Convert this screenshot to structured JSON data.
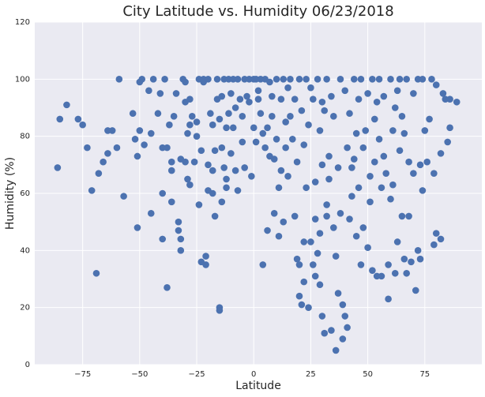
{
  "chart_data": {
    "type": "scatter",
    "title": "City Latitude vs. Humidity 06/23/2018",
    "x_label": "Latitude",
    "y_label": "Humidity (%)",
    "color": "#4c72b0",
    "grid": true,
    "xlim": [
      -96,
      100
    ],
    "ylim": [
      0,
      120
    ],
    "xticks": [
      {
        "value": -75,
        "label": "−75"
      },
      {
        "value": -50,
        "label": "−50"
      },
      {
        "value": -25,
        "label": "−25"
      },
      0,
      25,
      50,
      75
    ],
    "yticks": [
      0,
      20,
      40,
      60,
      80,
      100,
      120
    ],
    "x": [
      -86,
      -85,
      -82,
      -77,
      -75,
      -73,
      -71,
      -69,
      -68,
      -66,
      -64,
      -64,
      -62,
      -60,
      -59,
      -57,
      -53,
      -52,
      -51,
      -51,
      -50,
      -50,
      -49,
      -48,
      -46,
      -45,
      -45,
      -44,
      -42,
      -41,
      -40,
      -40,
      -40,
      -39,
      -38,
      -38,
      -37,
      -36,
      -36,
      -36,
      -35,
      -34,
      -33,
      -33,
      -32,
      -32,
      -32,
      -31,
      -30,
      -30,
      -30,
      -29,
      -29,
      -28,
      -28,
      -28,
      -27,
      -26,
      -25,
      -25,
      -24,
      -24,
      -23,
      -23,
      -22,
      -22,
      -21,
      -21,
      -20,
      -20,
      -20,
      -19,
      -18,
      -18,
      -18,
      -17,
      -17,
      -16,
      -16,
      -15,
      -15,
      -15,
      -14,
      -14,
      -14,
      -13,
      -13,
      -12,
      -12,
      -12,
      -11,
      -11,
      -10,
      -10,
      -9,
      -9,
      -8,
      -8,
      -7,
      -7,
      -6,
      -5,
      -5,
      -4,
      -4,
      -3,
      -2,
      -2,
      -1,
      0,
      0,
      1,
      1,
      2,
      2,
      3,
      3,
      4,
      4,
      5,
      5,
      6,
      6,
      7,
      7,
      8,
      8,
      9,
      9,
      10,
      10,
      11,
      11,
      12,
      12,
      13,
      13,
      14,
      14,
      15,
      15,
      16,
      16,
      17,
      18,
      18,
      19,
      19,
      20,
      20,
      20,
      21,
      21,
      22,
      22,
      22,
      23,
      23,
      24,
      24,
      25,
      25,
      26,
      26,
      27,
      27,
      27,
      28,
      28,
      29,
      29,
      29,
      30,
      30,
      30,
      31,
      31,
      32,
      32,
      32,
      33,
      33,
      34,
      34,
      35,
      35,
      36,
      36,
      37,
      37,
      38,
      38,
      39,
      39,
      40,
      40,
      41,
      41,
      42,
      42,
      43,
      43,
      44,
      44,
      45,
      45,
      46,
      46,
      47,
      47,
      48,
      48,
      49,
      50,
      50,
      51,
      51,
      52,
      52,
      53,
      53,
      54,
      54,
      55,
      55,
      56,
      56,
      57,
      57,
      58,
      59,
      59,
      60,
      60,
      61,
      61,
      62,
      62,
      63,
      63,
      64,
      64,
      65,
      65,
      66,
      66,
      67,
      67,
      68,
      68,
      69,
      70,
      70,
      71,
      72,
      72,
      73,
      73,
      74,
      74,
      75,
      76,
      77,
      78,
      79,
      79,
      80,
      80,
      82,
      82,
      83,
      84,
      85,
      86,
      86,
      89
    ],
    "values": [
      69,
      86,
      91,
      86,
      84,
      76,
      61,
      32,
      67,
      71,
      74,
      82,
      82,
      76,
      100,
      59,
      88,
      79,
      48,
      73,
      82,
      99,
      100,
      77,
      96,
      53,
      81,
      100,
      88,
      95,
      76,
      60,
      44,
      100,
      27,
      76,
      84,
      68,
      71,
      57,
      87,
      95,
      50,
      47,
      40,
      44,
      72,
      100,
      99,
      92,
      71,
      81,
      65,
      63,
      93,
      84,
      87,
      71,
      80,
      85,
      100,
      56,
      75,
      36,
      99,
      100,
      35,
      38,
      100,
      61,
      70,
      88,
      84,
      68,
      60,
      52,
      75,
      100,
      93,
      86,
      19,
      20,
      94,
      57,
      76,
      100,
      69,
      83,
      65,
      62,
      100,
      88,
      95,
      74,
      100,
      83,
      68,
      90,
      100,
      61,
      93,
      78,
      87,
      100,
      69,
      94,
      92,
      100,
      66,
      100,
      83,
      100,
      78,
      96,
      93,
      100,
      88,
      35,
      81,
      100,
      76,
      47,
      83,
      99,
      73,
      94,
      87,
      53,
      72,
      100,
      79,
      45,
      62,
      93,
      68,
      50,
      100,
      85,
      76,
      66,
      97,
      100,
      87,
      79,
      52,
      93,
      71,
      37,
      24,
      35,
      100,
      21,
      89,
      77,
      43,
      29,
      100,
      62,
      20,
      84,
      43,
      97,
      93,
      35,
      31,
      51,
      64,
      39,
      100,
      46,
      28,
      82,
      17,
      70,
      92,
      11,
      89,
      100,
      56,
      52,
      65,
      73,
      12,
      94,
      48,
      87,
      5,
      38,
      25,
      69,
      100,
      53,
      9,
      21,
      17,
      96,
      13,
      76,
      51,
      88,
      59,
      69,
      100,
      72,
      45,
      81,
      62,
      93,
      35,
      100,
      48,
      76,
      82,
      41,
      95,
      57,
      66,
      33,
      100,
      71,
      86,
      31,
      92,
      79,
      100,
      31,
      62,
      94,
      73,
      67,
      23,
      35,
      100,
      58,
      82,
      63,
      32,
      90,
      96,
      43,
      75,
      100,
      52,
      87,
      37,
      81,
      100,
      32,
      71,
      52,
      36,
      67,
      95,
      26,
      40,
      100,
      37,
      70,
      61,
      100,
      82,
      71,
      86,
      100,
      42,
      67,
      46,
      98,
      74,
      44,
      95,
      93,
      78,
      83,
      93,
      92
    ]
  }
}
